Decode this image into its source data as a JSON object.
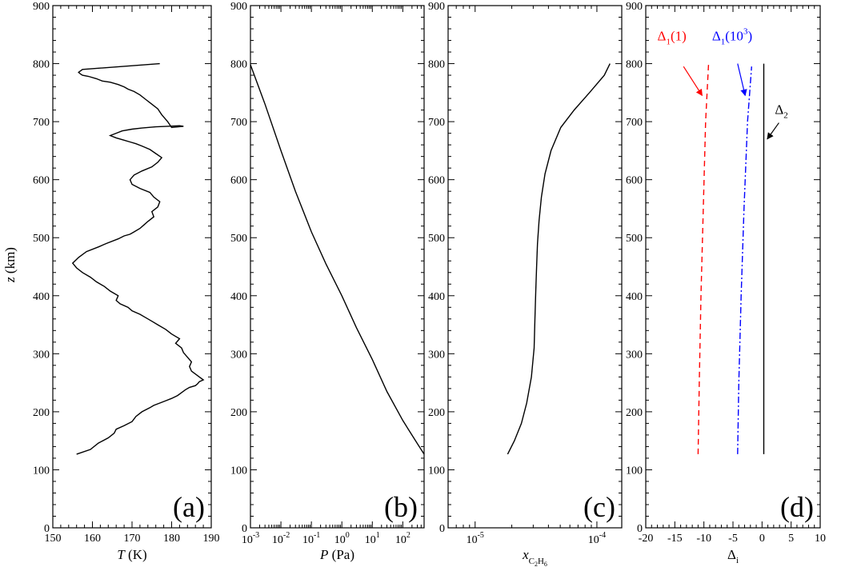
{
  "chart_data": [
    {
      "panel": "(a)",
      "type": "line",
      "xlabel_pre": "",
      "xlabel_italic": "T",
      "xlabel_post": " (K)",
      "ylabel_italic": "z",
      "ylabel_post": " (km)",
      "xscale": "linear",
      "xlim": [
        150,
        190
      ],
      "ylim": [
        0,
        900
      ],
      "xticks": [
        150,
        160,
        170,
        180,
        190
      ],
      "xtick_labels": [
        "150",
        "160",
        "170",
        "180",
        "190"
      ],
      "yticks": [
        0,
        100,
        200,
        300,
        400,
        500,
        600,
        700,
        800,
        900
      ],
      "ytick_labels": [
        "0",
        "100",
        "200",
        "300",
        "400",
        "500",
        "600",
        "700",
        "800",
        "900"
      ],
      "series": [
        {
          "color": "#000000",
          "dash": "",
          "x": [
            156.0,
            159.5,
            161.5,
            164.0,
            165.5,
            166.0,
            168.0,
            170.0,
            171.0,
            172.5,
            174.5,
            175.5,
            177.0,
            178.5,
            180.0,
            181.5,
            182.5,
            183.5,
            184.5,
            186.0,
            186.5,
            187.0,
            188.0,
            187.0,
            186.0,
            185.0,
            184.5,
            185.0,
            184.0,
            183.0,
            182.5,
            181.0,
            182.0,
            180.0,
            178.5,
            176.5,
            175.0,
            173.5,
            172.0,
            170.0,
            169.0,
            167.0,
            166.0,
            166.5,
            164.5,
            163.0,
            161.0,
            159.5,
            157.5,
            156.0,
            155.0,
            156.5,
            158.5,
            161.5,
            163.5,
            166.5,
            168.0,
            169.5,
            170.5,
            172.0,
            173.0,
            174.0,
            175.5,
            175.0,
            176.5,
            177.0,
            175.5,
            174.5,
            172.0,
            170.0,
            169.5,
            170.5,
            172.5,
            175.0,
            176.5,
            177.5,
            176.0,
            174.5,
            172.5,
            171.0,
            169.5,
            168.0,
            166.0,
            164.5,
            166.0,
            167.5,
            170.0,
            172.5,
            176.0,
            179.0,
            182.0,
            183.0,
            180.0,
            179.0,
            177.5,
            176.5,
            175.0,
            173.5,
            172.0,
            170.5,
            169.0,
            168.0,
            166.5,
            164.5,
            162.5,
            161.0,
            159.0,
            157.5,
            157.0,
            156.5,
            157.5,
            177.0
          ],
          "y": [
            127,
            135,
            146,
            155,
            163,
            170,
            176,
            183,
            192,
            200,
            207,
            211,
            215,
            219,
            223,
            228,
            233,
            238,
            242,
            245,
            248,
            252,
            255,
            260,
            265,
            270,
            278,
            286,
            294,
            302,
            310,
            318,
            326,
            334,
            342,
            350,
            356,
            362,
            368,
            374,
            380,
            386,
            392,
            400,
            408,
            416,
            424,
            432,
            440,
            448,
            456,
            466,
            476,
            484,
            490,
            498,
            503,
            506,
            510,
            516,
            522,
            528,
            536,
            545,
            553,
            562,
            570,
            578,
            585,
            592,
            600,
            608,
            615,
            622,
            630,
            638,
            645,
            652,
            658,
            662,
            665,
            668,
            672,
            676,
            680,
            684,
            687,
            689,
            691,
            692,
            693,
            692,
            690,
            700,
            712,
            722,
            730,
            738,
            746,
            752,
            756,
            760,
            764,
            768,
            770,
            774,
            778,
            780,
            782,
            785,
            790,
            800
          ]
        }
      ],
      "annotations": []
    },
    {
      "panel": "(b)",
      "type": "line",
      "xlabel_pre": "",
      "xlabel_italic": "P",
      "xlabel_post": " (Pa)",
      "xscale": "log",
      "xlim": [
        0.001,
        500
      ],
      "ylim": [
        0,
        900
      ],
      "xticks": [
        0.001,
        0.01,
        0.1,
        1,
        10,
        100
      ],
      "xtick_labels": [
        {
          "base": "10",
          "exp": "-3"
        },
        {
          "base": "10",
          "exp": "-2"
        },
        {
          "base": "10",
          "exp": "-1"
        },
        {
          "base": "10",
          "exp": "0"
        },
        {
          "base": "10",
          "exp": "1"
        },
        {
          "base": "10",
          "exp": "2"
        }
      ],
      "yticks": [
        0,
        100,
        200,
        300,
        400,
        500,
        600,
        700,
        800,
        900
      ],
      "ytick_labels": [
        "0",
        "100",
        "200",
        "300",
        "400",
        "500",
        "600",
        "700",
        "800",
        "900"
      ],
      "series": [
        {
          "color": "#000000",
          "dash": "",
          "x": [
            500,
            300,
            100,
            30,
            10,
            3,
            1,
            0.3,
            0.1,
            0.03,
            0.01,
            0.003,
            0.001
          ],
          "y": [
            127,
            145,
            185,
            235,
            290,
            345,
            400,
            455,
            510,
            580,
            650,
            730,
            798
          ]
        }
      ],
      "annotations": []
    },
    {
      "panel": "(c)",
      "type": "line",
      "xlabel_pre": "x",
      "xlabel_sub_base": "C",
      "xlabel_sub_2": "2",
      "xlabel_sub_h": "H",
      "xlabel_sub_6": "6",
      "xscale": "log",
      "xlim": [
        6e-06,
        0.00016
      ],
      "ylim": [
        0,
        900
      ],
      "xticks": [
        1e-05,
        0.0001
      ],
      "xtick_labels": [
        {
          "base": "10",
          "exp": "-5"
        },
        {
          "base": "10",
          "exp": "-4"
        }
      ],
      "yticks": [
        0,
        100,
        200,
        300,
        400,
        500,
        600,
        700,
        800,
        900
      ],
      "ytick_labels": [
        "0",
        "100",
        "200",
        "300",
        "400",
        "500",
        "600",
        "700",
        "800",
        "900"
      ],
      "series": [
        {
          "color": "#000000",
          "dash": "",
          "x": [
            1.85e-05,
            2.1e-05,
            2.4e-05,
            2.65e-05,
            2.9e-05,
            3.05e-05,
            3.1e-05,
            3.15e-05,
            3.2e-05,
            3.25e-05,
            3.35e-05,
            3.5e-05,
            3.75e-05,
            4.2e-05,
            5.05e-05,
            6.5e-05,
            8.7e-05,
            0.000115,
            0.000128
          ],
          "y": [
            127,
            150,
            180,
            215,
            260,
            310,
            360,
            410,
            450,
            490,
            530,
            570,
            610,
            650,
            690,
            720,
            750,
            780,
            800
          ]
        }
      ],
      "annotations": []
    },
    {
      "panel": "(d)",
      "type": "line",
      "xlabel_pre": "Δ",
      "xlabel_sub": "i",
      "xscale": "linear",
      "xlim": [
        -20,
        10
      ],
      "ylim": [
        0,
        900
      ],
      "xticks": [
        -20,
        -15,
        -10,
        -5,
        0,
        5,
        10
      ],
      "xtick_labels": [
        "-20",
        "-15",
        "-10",
        "-5",
        "0",
        "5",
        "10"
      ],
      "yticks": [
        0,
        100,
        200,
        300,
        400,
        500,
        600,
        700,
        800,
        900
      ],
      "ytick_labels": [
        "0",
        "100",
        "200",
        "300",
        "400",
        "500",
        "600",
        "700",
        "800",
        "900"
      ],
      "series": [
        {
          "color": "#ff0000",
          "dash": "7,5",
          "x": [
            -11.0,
            -10.8,
            -10.5,
            -10.1,
            -9.7,
            -9.2
          ],
          "y": [
            127,
            250,
            400,
            550,
            700,
            800
          ]
        },
        {
          "color": "#0000ff",
          "dash": "8,3,2,3",
          "x": [
            -4.2,
            -4.0,
            -3.6,
            -3.1,
            -2.5,
            -1.8
          ],
          "y": [
            127,
            250,
            400,
            550,
            700,
            795
          ]
        },
        {
          "color": "#000000",
          "dash": "",
          "x": [
            0.3,
            0.3,
            0.3
          ],
          "y": [
            127,
            460,
            800
          ]
        }
      ],
      "annotations": [
        {
          "base": "Δ",
          "sub": "1",
          "tail": "(1)",
          "sup": "",
          "tail2": "",
          "color": "#ff0000",
          "x": -18.0,
          "y": 840,
          "arrow_from": [
            -13.5,
            795
          ],
          "arrow_to": [
            -10.3,
            745
          ]
        },
        {
          "base": "Δ",
          "sub": "1",
          "tail": "(10",
          "sup": "3",
          "tail2": ")",
          "color": "#0000ff",
          "x": -8.6,
          "y": 840,
          "arrow_from": [
            -4.2,
            800
          ],
          "arrow_to": [
            -2.9,
            745
          ]
        },
        {
          "base": "Δ",
          "sub": "2",
          "tail": "",
          "sup": "",
          "tail2": "",
          "color": "#000000",
          "x": 2.2,
          "y": 713,
          "arrow_from": [
            2.9,
            698
          ],
          "arrow_to": [
            0.9,
            670
          ]
        }
      ]
    }
  ]
}
